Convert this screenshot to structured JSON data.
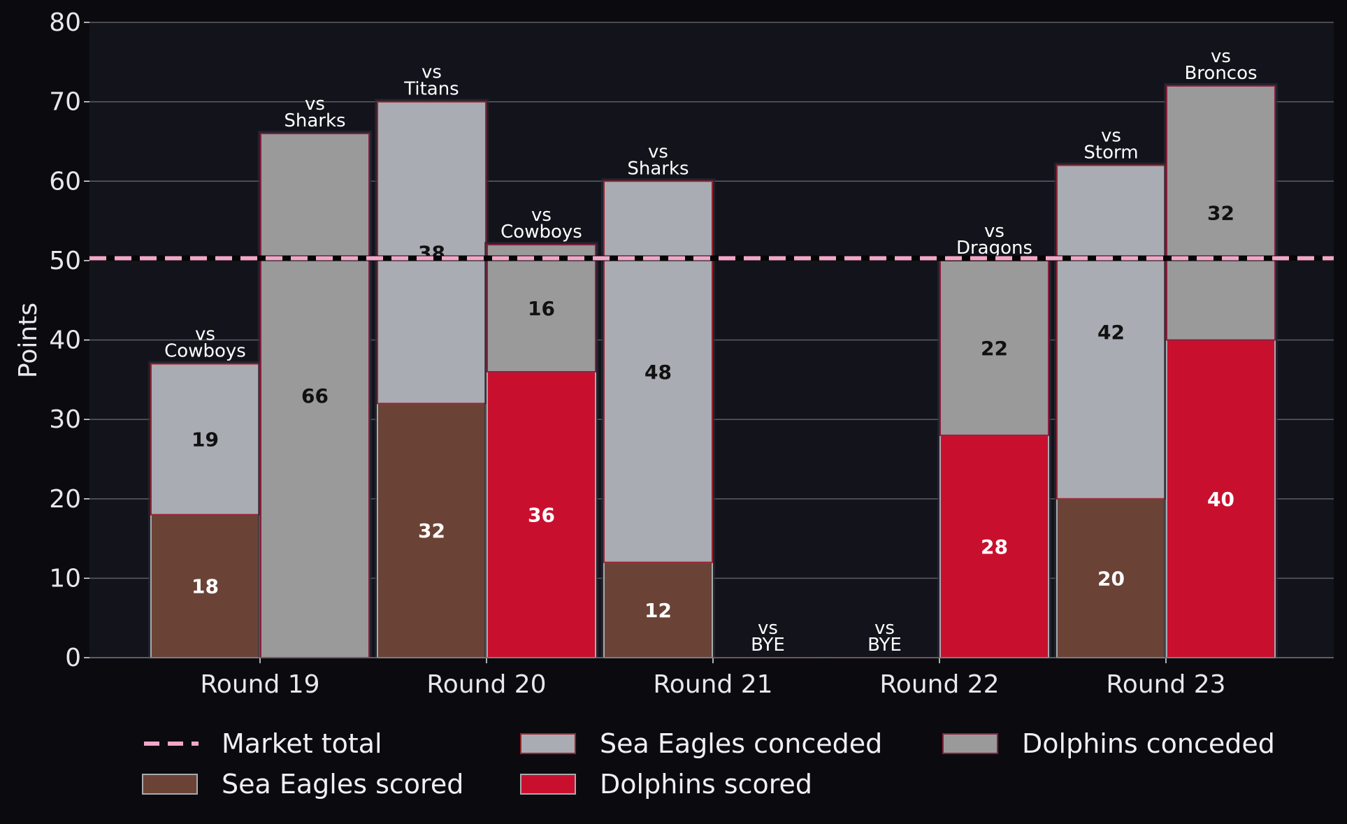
{
  "chart_data": {
    "type": "bar",
    "ylabel": "Points",
    "ylim": [
      0,
      80
    ],
    "yticks": [
      "0",
      "10",
      "20",
      "30",
      "40",
      "50",
      "60",
      "70",
      "80"
    ],
    "grid": true,
    "legend_position": "bottom",
    "categories": [
      "Round 19",
      "Round 20",
      "Round 21",
      "Round 22",
      "Round 23"
    ],
    "reference_line": {
      "name": "Market total",
      "value": 50.3,
      "color": "#f4a6c8"
    },
    "series": [
      {
        "name": "Sea Eagles scored",
        "team": "sea_eagles",
        "part": "scored",
        "color": "#6a4336",
        "edge": "#a8aab0",
        "values": [
          18,
          32,
          12,
          0,
          20
        ]
      },
      {
        "name": "Sea Eagles conceded",
        "team": "sea_eagles",
        "part": "conceded",
        "color": "#a9acb3",
        "edge": "#9b2230",
        "values": [
          19,
          38,
          48,
          0,
          42
        ]
      },
      {
        "name": "Dolphins scored",
        "team": "dolphins",
        "part": "scored",
        "color": "#c8102e",
        "edge": "#a8aab0",
        "values": [
          0,
          36,
          0,
          28,
          40
        ]
      },
      {
        "name": "Dolphins conceded",
        "team": "dolphins",
        "part": "conceded",
        "color": "#9a9a9a",
        "edge": "#8a1f3c",
        "values": [
          66,
          16,
          0,
          22,
          32
        ]
      }
    ],
    "opponents": {
      "sea_eagles": [
        [
          "vs",
          "Cowboys"
        ],
        [
          "vs",
          "Titans"
        ],
        [
          "vs",
          "Sharks"
        ],
        [
          "vs",
          "BYE"
        ],
        [
          "vs",
          "Storm"
        ]
      ],
      "dolphins": [
        [
          "vs",
          "Sharks"
        ],
        [
          "vs",
          "Cowboys"
        ],
        [
          "vs",
          "BYE"
        ],
        [
          "vs",
          "Dragons"
        ],
        [
          "vs",
          "Broncos"
        ]
      ]
    },
    "legend": [
      "Market total",
      "Sea Eagles conceded",
      "Dolphins conceded",
      "Sea Eagles scored",
      "Dolphins scored"
    ]
  }
}
